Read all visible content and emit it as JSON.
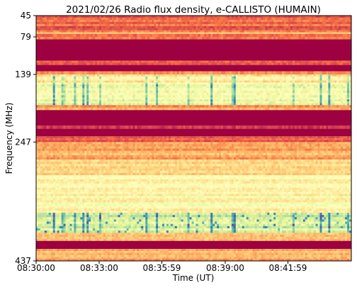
{
  "chart_data": {
    "type": "heatmap",
    "title": "2021/02/26  Radio flux density, e-CALLISTO (HUMAIN)",
    "xlabel": "Time (UT)",
    "ylabel": "Frequency (MHz)",
    "x_ticks": [
      "08:30:00",
      "08:33:00",
      "08:35:59",
      "08:39:00",
      "08:41:59"
    ],
    "y_ticks": [
      "45",
      "79",
      "139",
      "247",
      "437"
    ],
    "x_range": [
      "08:30:00",
      "08:45:00"
    ],
    "y_range": [
      45,
      437
    ],
    "y_axis_inverted": true,
    "colormap": "Spectral_r",
    "colormap_colors": [
      "#9e0142",
      "#d53e4f",
      "#f46d43",
      "#fdae61",
      "#fee08b",
      "#ffffbf",
      "#e6f598",
      "#abdda4",
      "#66c2a5",
      "#3288bd",
      "#5e4fa2"
    ],
    "intensity_bands": [
      {
        "from": 45,
        "to": 72,
        "level": 0.18,
        "texture": "noisy"
      },
      {
        "from": 72,
        "to": 74,
        "level": 0.35,
        "texture": "stripe"
      },
      {
        "from": 74,
        "to": 79,
        "level": 0.2,
        "texture": "noisy"
      },
      {
        "from": 79,
        "to": 83,
        "level": 0.28,
        "texture": "noisy"
      },
      {
        "from": 83,
        "to": 117,
        "level": 0.0,
        "texture": "flat"
      },
      {
        "from": 117,
        "to": 124,
        "level": 0.15,
        "texture": "noisy"
      },
      {
        "from": 124,
        "to": 134,
        "level": 0.0,
        "texture": "flat"
      },
      {
        "from": 134,
        "to": 139,
        "level": 0.25,
        "texture": "noisy"
      },
      {
        "from": 139,
        "to": 152,
        "level": 0.45,
        "texture": "bright"
      },
      {
        "from": 152,
        "to": 161,
        "level": 0.55,
        "texture": "bright"
      },
      {
        "from": 161,
        "to": 176,
        "level": 0.5,
        "texture": "bright"
      },
      {
        "from": 176,
        "to": 188,
        "level": 0.55,
        "texture": "bright"
      },
      {
        "from": 188,
        "to": 196,
        "level": 0.3,
        "texture": "noisy"
      },
      {
        "from": 196,
        "to": 221,
        "level": 0.0,
        "texture": "flat"
      },
      {
        "from": 221,
        "to": 226,
        "level": 0.12,
        "texture": "noisy"
      },
      {
        "from": 226,
        "to": 238,
        "level": 0.0,
        "texture": "flat"
      },
      {
        "from": 238,
        "to": 247,
        "level": 0.15,
        "texture": "noisy"
      },
      {
        "from": 247,
        "to": 275,
        "level": 0.3,
        "texture": "noisy"
      },
      {
        "from": 275,
        "to": 300,
        "level": 0.4,
        "texture": "noisy"
      },
      {
        "from": 300,
        "to": 360,
        "level": 0.48,
        "texture": "noisy"
      },
      {
        "from": 360,
        "to": 392,
        "level": 0.62,
        "texture": "bursty"
      },
      {
        "from": 392,
        "to": 405,
        "level": 0.3,
        "texture": "noisy"
      },
      {
        "from": 405,
        "to": 418,
        "level": 0.0,
        "texture": "flat"
      },
      {
        "from": 418,
        "to": 437,
        "level": 0.3,
        "texture": "noisy"
      }
    ]
  }
}
